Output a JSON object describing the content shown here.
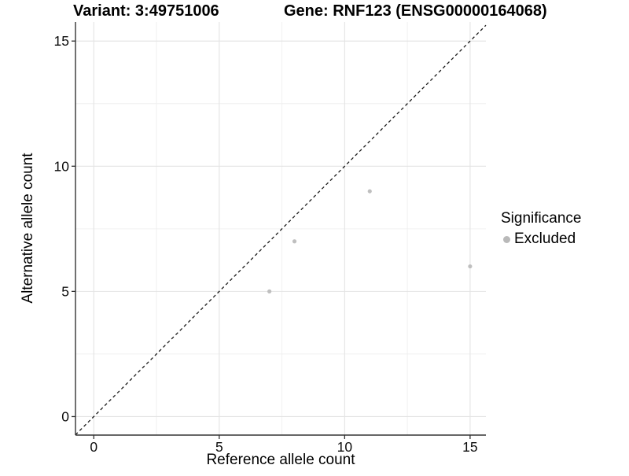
{
  "titles": {
    "left": "Variant: 3:49751006",
    "right": "Gene: RNF123 (ENSG00000164068)"
  },
  "chart_data": {
    "type": "scatter",
    "xlabel": "Reference allele count",
    "ylabel": "Alternative allele count",
    "xlim": [
      -0.73,
      15.63
    ],
    "ylim": [
      -0.74,
      15.76
    ],
    "x_ticks": [
      0,
      5,
      10,
      15
    ],
    "y_ticks": [
      0,
      5,
      10,
      15
    ],
    "x_minor_ticks": [
      2.5,
      7.5,
      12.5
    ],
    "y_minor_ticks": [
      2.5,
      7.5,
      12.5
    ],
    "grid": true,
    "series": [
      {
        "name": "Excluded",
        "points": [
          [
            7,
            5
          ],
          [
            8,
            7
          ],
          [
            11,
            9
          ],
          [
            15,
            6
          ]
        ]
      }
    ],
    "reference_line": {
      "type": "identity",
      "style": "dashed",
      "slope": 1,
      "intercept": 0
    },
    "legend": {
      "title": "Significance",
      "position": "right",
      "entries": [
        {
          "label": "Excluded"
        }
      ]
    }
  },
  "colors": {
    "point": "#bfbfbf",
    "legend_key": "#b9b9b9",
    "grid_major": "#e4e4e4",
    "grid_minor": "#f0f0f0",
    "axis_line": "#333333",
    "tick_mark": "#333333",
    "tick_label": "#0d0d0d",
    "reference_line": "#1a1a1a",
    "background": "#ffffff"
  }
}
